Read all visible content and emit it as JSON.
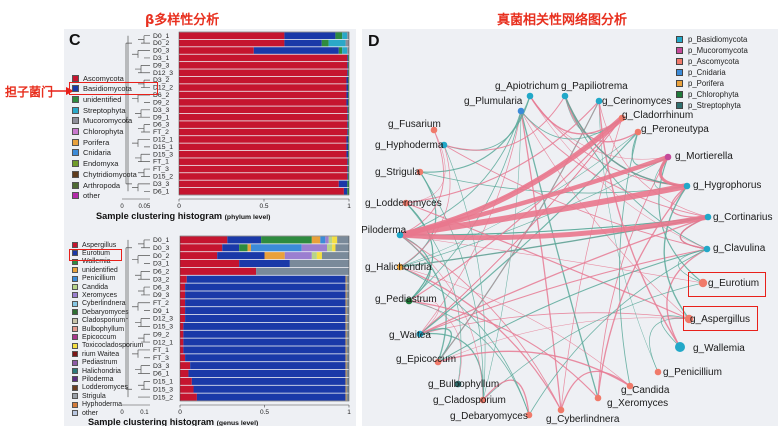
{
  "titles": {
    "beta": "β多样性分析",
    "network": "真菌相关性网络图分析",
    "annotation": "担子菌门"
  },
  "panels": {
    "left_letter": "C",
    "right_letter": "D"
  },
  "colors": {
    "Ascomycota": "#c5152f",
    "Basidiomycota": "#1a39a8",
    "unidentified": "#2e8b3f",
    "Streptophyta": "#2aa8c8",
    "Mucoromycota": "#8e8e9a",
    "Chlorophyta": "#c979cf",
    "Porifera": "#e9a13b",
    "Cnidaria": "#3c8bd8",
    "Endomyxa": "#6f9b2a",
    "Chytridiomycota": "#5f3c1d",
    "Arthropoda": "#4f6b34",
    "other": "#b22aa8",
    "Aspergillus": "#c5152f",
    "Eurotium": "#1a39a8",
    "Wallemia": "#2e8b3f",
    "unidentified_g": "#e9a13b",
    "Penicillium": "#3c8bd8",
    "Candida": "#b7d48a",
    "Xeromyces": "#9b7fd0",
    "Cyberlindnera": "#86c6e4",
    "Debaryomyces": "#2f6f33",
    "Cladosporium": "#c8c4a9",
    "Bulbophyllum": "#e39b8f",
    "Epicoccum": "#a8368c",
    "Toxicocladosporium": "#f4df42",
    "Waitea": "#7c1616",
    "Pediastrum": "#8d5ba6",
    "Halichondria": "#2c7a7b",
    "Piloderma": "#5b2d82",
    "Lodderomyces": "#6a3d1f",
    "Strigula": "#9aa0a8",
    "Hyphoderma": "#d37b3a",
    "other_g": "#b8c6e0"
  },
  "chart_data": [
    {
      "type": "bar",
      "orientation": "horizontal",
      "stacked": true,
      "title": "Sample clustering histogram",
      "subtitle": "(phylum level)",
      "xlim": [
        0,
        1
      ],
      "xticks": [
        "0",
        "0.05",
        "1"
      ],
      "xticks_values": [
        0,
        0.05,
        1
      ],
      "axis_ticks": [
        "0",
        "0.5",
        "1"
      ],
      "categories": [
        "D0_1",
        "D0_2",
        "D0_3",
        "D3_1",
        "D9_3",
        "D12_3",
        "D3_2",
        "D12_2",
        "D6_2",
        "D9_2",
        "D3_3",
        "D9_1",
        "D6_3",
        "FT_2",
        "D12_1",
        "D15_1",
        "D15_3",
        "FT_1",
        "FT_3",
        "D15_2",
        "D3_3",
        "D6_1"
      ],
      "legend": [
        "Ascomycota",
        "Basidiomycota",
        "unidentified",
        "Streptophyta",
        "Mucoromycota",
        "Chlorophyta",
        "Porifera",
        "Cnidaria",
        "Endomyxa",
        "Chytridiomycota",
        "Arthropoda",
        "other"
      ],
      "series": [
        {
          "name": "Ascomycota",
          "values": [
            0.62,
            0.62,
            0.44,
            0.99,
            0.99,
            0.99,
            0.985,
            0.985,
            0.985,
            0.985,
            0.99,
            0.99,
            0.99,
            0.99,
            0.985,
            0.985,
            0.985,
            0.99,
            0.99,
            0.99,
            0.94,
            0.97
          ]
        },
        {
          "name": "Basidiomycota",
          "values": [
            0.3,
            0.22,
            0.5,
            0.005,
            0.005,
            0.005,
            0.01,
            0.01,
            0.01,
            0.01,
            0.005,
            0.005,
            0.005,
            0.005,
            0.01,
            0.01,
            0.01,
            0.005,
            0.005,
            0.005,
            0.05,
            0.02
          ]
        },
        {
          "name": "unidentified",
          "values": [
            0.04,
            0.04,
            0.02,
            0.005,
            0.005,
            0.005,
            0.005,
            0.005,
            0.005,
            0.005,
            0.005,
            0.005,
            0.005,
            0.005,
            0.005,
            0.005,
            0.005,
            0.005,
            0.005,
            0.005,
            0.01,
            0.01
          ]
        },
        {
          "name": "Streptophyta",
          "values": [
            0.03,
            0.1,
            0.03,
            0,
            0,
            0,
            0,
            0,
            0,
            0,
            0,
            0,
            0,
            0,
            0,
            0,
            0,
            0,
            0,
            0,
            0,
            0
          ]
        },
        {
          "name": "Mucoromycota",
          "values": [
            0.01,
            0.02,
            0.01,
            0,
            0,
            0,
            0,
            0,
            0,
            0,
            0,
            0,
            0,
            0,
            0,
            0,
            0,
            0,
            0,
            0,
            0,
            0
          ]
        }
      ]
    },
    {
      "type": "bar",
      "orientation": "horizontal",
      "stacked": true,
      "title": "Sample clustering histogram",
      "subtitle": "(genus level)",
      "xlim": [
        0,
        1
      ],
      "xticks": [
        "0",
        "0.1",
        "1"
      ],
      "xticks_values": [
        0,
        0.1,
        1
      ],
      "axis_ticks": [
        "0",
        "0.5",
        "1"
      ],
      "categories": [
        "D0_1",
        "D0_3",
        "D0_2",
        "D3_1",
        "D6_2",
        "D3_2",
        "D6_3",
        "D9_3",
        "FT_2",
        "D9_1",
        "D12_3",
        "D15_3",
        "D9_2",
        "D12_1",
        "FT_1",
        "FT_3",
        "D3_3",
        "D6_1",
        "D15_1",
        "D15_3",
        "D15_2"
      ],
      "legend": [
        "Aspergillus",
        "Eurotium",
        "Wallemia",
        "unidentified",
        "Penicillium",
        "Candida",
        "Xeromyces",
        "Cyberlindnera",
        "Debaryomyces",
        "Cladosporium",
        "Bulbophyllum",
        "Epicoccum",
        "Toxicocladosporium",
        "rium Waitea",
        "Pediastrum",
        "Halichondria",
        "Piloderma",
        "Lodderomyces",
        "Strigula",
        "Hyphoderma",
        "other"
      ],
      "series": [
        {
          "name": "Aspergillus",
          "values": [
            0.28,
            0.25,
            0.22,
            0.35,
            0.45,
            0.04,
            0.03,
            0.03,
            0.03,
            0.03,
            0.03,
            0.02,
            0.02,
            0.02,
            0.02,
            0.03,
            0.06,
            0.05,
            0.07,
            0.08,
            0.1
          ]
        },
        {
          "name": "Eurotium",
          "values": [
            0.2,
            0.1,
            0.28,
            0.3,
            0.0,
            0.94,
            0.95,
            0.95,
            0.95,
            0.95,
            0.95,
            0.96,
            0.96,
            0.96,
            0.96,
            0.95,
            0.92,
            0.93,
            0.91,
            0.9,
            0.88
          ]
        },
        {
          "name": "Wallemia",
          "values": [
            0.3,
            0.05,
            0.0,
            0.0,
            0.0,
            0.0,
            0.0,
            0.0,
            0.0,
            0.0,
            0.0,
            0.0,
            0.0,
            0.0,
            0.0,
            0.0,
            0.0,
            0.0,
            0.0,
            0.0,
            0.0
          ]
        },
        {
          "name": "unidentified",
          "values": [
            0.05,
            0.02,
            0.12,
            0.0,
            0.0,
            0.005,
            0.005,
            0.005,
            0.005,
            0.005,
            0.005,
            0.005,
            0.005,
            0.005,
            0.005,
            0.005,
            0.005,
            0.005,
            0.005,
            0.005,
            0.005
          ]
        },
        {
          "name": "Penicillium",
          "values": [
            0.03,
            0.3,
            0.0,
            0.0,
            0.0,
            0.0,
            0.0,
            0.0,
            0.0,
            0.0,
            0.0,
            0.0,
            0.0,
            0.0,
            0.0,
            0.0,
            0.0,
            0.0,
            0.0,
            0.0,
            0.0
          ]
        },
        {
          "name": "Xeromyces",
          "values": [
            0.02,
            0.15,
            0.16,
            0.0,
            0.0,
            0.0,
            0.0,
            0.0,
            0.0,
            0.0,
            0.0,
            0.0,
            0.0,
            0.0,
            0.0,
            0.0,
            0.0,
            0.0,
            0.0,
            0.0,
            0.0
          ]
        },
        {
          "name": "Candida",
          "values": [
            0.02,
            0.03,
            0.03,
            0.0,
            0.0,
            0.0,
            0.0,
            0.0,
            0.0,
            0.0,
            0.0,
            0.0,
            0.0,
            0.0,
            0.0,
            0.0,
            0.0,
            0.0,
            0.0,
            0.0,
            0.0
          ]
        },
        {
          "name": "Toxicocladosporium",
          "values": [
            0.03,
            0.02,
            0.03,
            0.0,
            0.0,
            0.0,
            0.0,
            0.0,
            0.0,
            0.0,
            0.0,
            0.0,
            0.0,
            0.0,
            0.0,
            0.0,
            0.0,
            0.0,
            0.0,
            0.0,
            0.0
          ]
        }
      ]
    },
    {
      "type": "network",
      "legend": [
        "p_Basidiomycota",
        "p_Mucoromycota",
        "p_Ascomycota",
        "p_Cnidaria",
        "p_Porifera",
        "p_Chlorophyta",
        "p_Streptophyta"
      ],
      "legend_colors": [
        "#22a8c8",
        "#c54a9a",
        "#f07a6a",
        "#3c8bd8",
        "#e9a13b",
        "#1f7a3a",
        "#2f6f6f"
      ],
      "nodes": [
        {
          "label": "g_Apiotrichum",
          "phylum": "p_Basidiomycota"
        },
        {
          "label": "g_Papiliotrema",
          "phylum": "p_Basidiomycota"
        },
        {
          "label": "g_Plumularia",
          "phylum": "p_Cnidaria"
        },
        {
          "label": "g_Cerinomyces",
          "phylum": "p_Basidiomycota"
        },
        {
          "label": "g_Cladorrhinum",
          "phylum": "p_Ascomycota"
        },
        {
          "label": "g_Peroneutypa",
          "phylum": "p_Ascomycota"
        },
        {
          "label": "g_Fusarium",
          "phylum": "p_Ascomycota"
        },
        {
          "label": "g_Hyphoderma",
          "phylum": "p_Basidiomycota"
        },
        {
          "label": "g_Mortierella",
          "phylum": "p_Mucoromycota"
        },
        {
          "label": "g_Strigula",
          "phylum": "p_Ascomycota"
        },
        {
          "label": "g_Hygrophorus",
          "phylum": "p_Basidiomycota"
        },
        {
          "label": "g_Lodderomyces",
          "phylum": "p_Ascomycota"
        },
        {
          "label": "g_Cortinarius",
          "phylum": "p_Basidiomycota"
        },
        {
          "label": "g_Piloderma",
          "phylum": "p_Basidiomycota"
        },
        {
          "label": "g_Clavulina",
          "phylum": "p_Basidiomycota"
        },
        {
          "label": "g_Halichondria",
          "phylum": "p_Porifera"
        },
        {
          "label": "g_Eurotium",
          "phylum": "p_Ascomycota"
        },
        {
          "label": "g_Pediastrum",
          "phylum": "p_Chlorophyta"
        },
        {
          "label": "g_Aspergillus",
          "phylum": "p_Ascomycota"
        },
        {
          "label": "g_Waitea",
          "phylum": "p_Basidiomycota"
        },
        {
          "label": "g_Wallemia",
          "phylum": "p_Basidiomycota"
        },
        {
          "label": "g_Epicoccum",
          "phylum": "p_Ascomycota"
        },
        {
          "label": "g_Penicillium",
          "phylum": "p_Ascomycota"
        },
        {
          "label": "g_Bulbophyllum",
          "phylum": "p_Streptophyta"
        },
        {
          "label": "g_Candida",
          "phylum": "p_Ascomycota"
        },
        {
          "label": "g_Cladosporium",
          "phylum": "p_Ascomycota"
        },
        {
          "label": "g_Xeromyces",
          "phylum": "p_Ascomycota"
        },
        {
          "label": "g_Debaryomyces",
          "phylum": "p_Ascomycota"
        },
        {
          "label": "g_Cyberlindnera",
          "phylum": "p_Ascomycota"
        }
      ],
      "thick_edges": [
        [
          "g_Piloderma",
          "g_Hygrophorus"
        ],
        [
          "g_Piloderma",
          "g_Cortinarius"
        ],
        [
          "g_Piloderma",
          "g_Mortierella"
        ],
        [
          "g_Piloderma",
          "g_Cladorrhinum"
        ],
        [
          "g_Hygrophorus",
          "g_Mortierella"
        ]
      ],
      "highlighted": [
        "g_Eurotium",
        "g_Aspergillus"
      ]
    }
  ]
}
